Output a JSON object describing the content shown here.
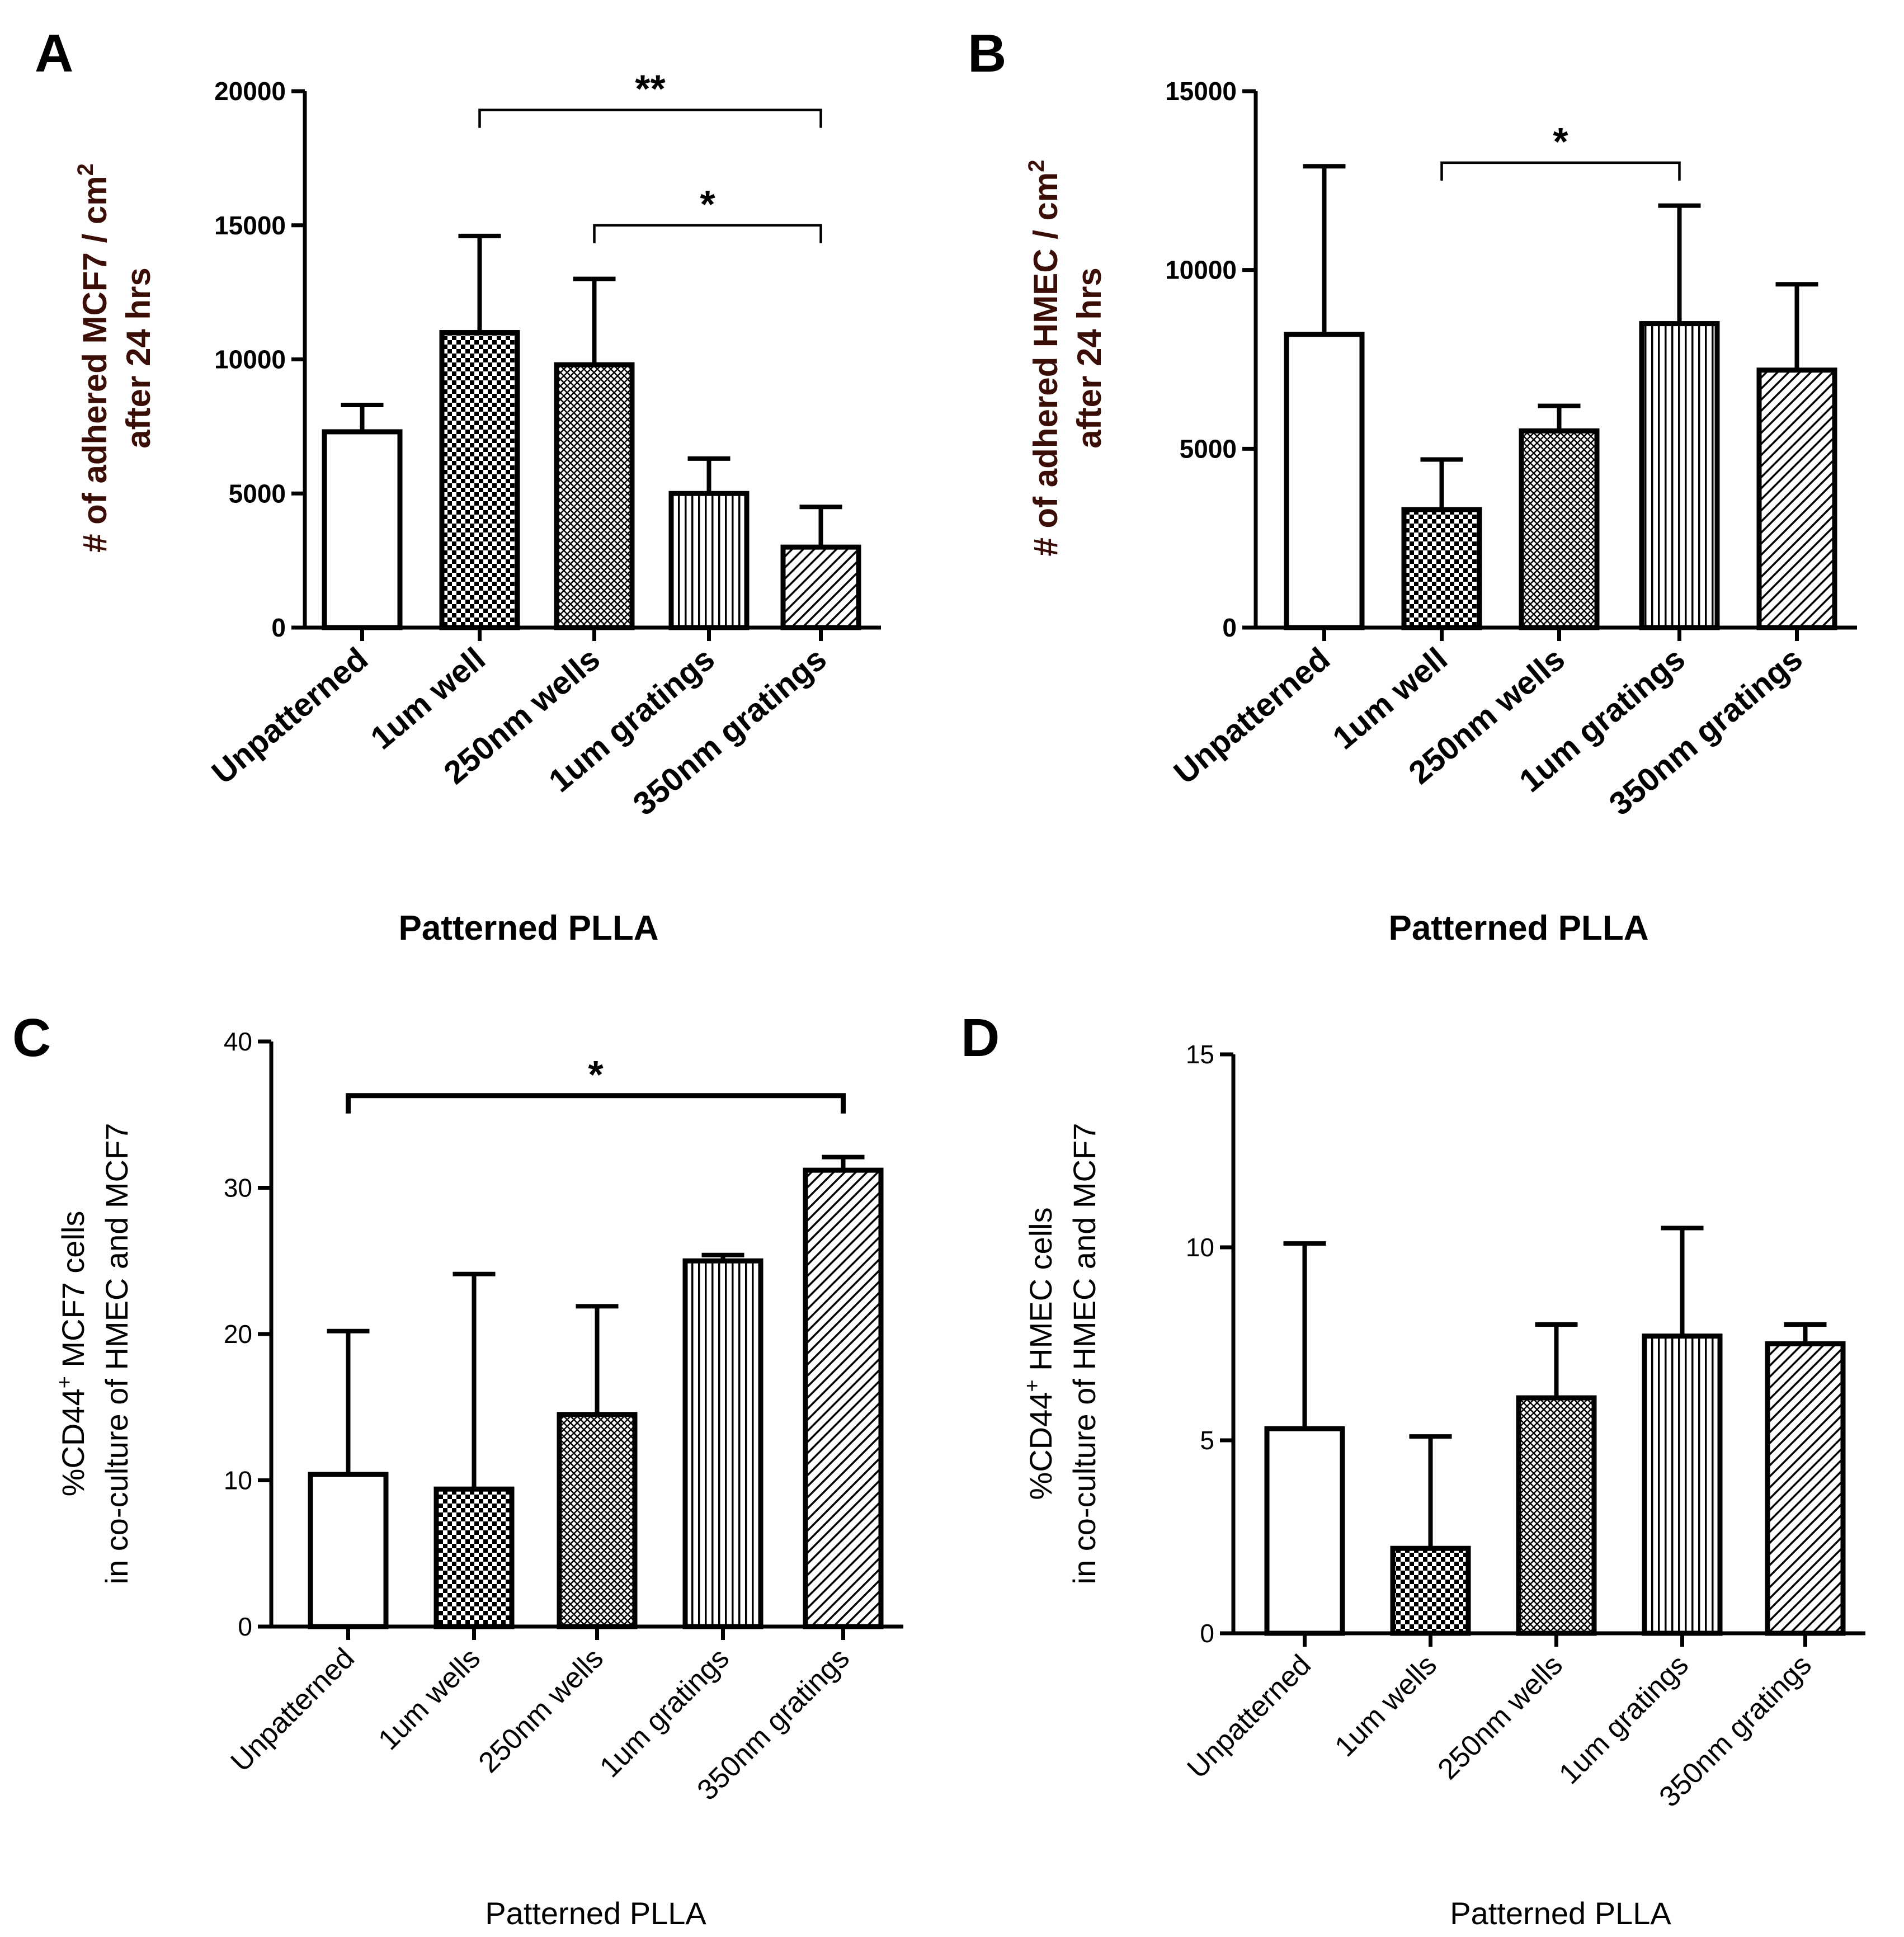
{
  "colors": {
    "ink": "#000000",
    "bar_fill": "#ffffff",
    "ylabel_bold": "#3a0e06"
  },
  "chart_data": [
    {
      "panel": "A",
      "type": "bar",
      "categories": [
        "Unpatterned",
        "1um well",
        "250nm wells",
        "1um gratings",
        "350nm gratings"
      ],
      "values": [
        7300,
        11000,
        9800,
        5000,
        3000
      ],
      "errors": [
        1000,
        3600,
        3200,
        1300,
        1500
      ],
      "patterns": [
        "none",
        "checker",
        "crosshatch",
        "vlines",
        "diag"
      ],
      "ylim": [
        0,
        20000
      ],
      "yticks": [
        "0",
        "5000",
        "10000",
        "15000",
        "20000"
      ],
      "ylabel_line1": "# of adhered MCF7 / cm",
      "ylabel_sup": "2",
      "ylabel_line2": "after 24 hrs",
      "xlabel": "Patterned PLLA",
      "significance": [
        {
          "from": 1,
          "to": 4,
          "y": 19300,
          "label": "**"
        },
        {
          "from": 2,
          "to": 4,
          "y": 15000,
          "label": "*"
        }
      ]
    },
    {
      "panel": "B",
      "type": "bar",
      "categories": [
        "Unpatterned",
        "1um well",
        "250nm wells",
        "1um gratings",
        "350nm gratings"
      ],
      "values": [
        8200,
        3300,
        5500,
        8500,
        7200
      ],
      "errors": [
        4700,
        1400,
        700,
        3300,
        2400
      ],
      "patterns": [
        "none",
        "checker",
        "crosshatch",
        "vlines",
        "diag"
      ],
      "ylim": [
        0,
        15000
      ],
      "yticks": [
        "0",
        "5000",
        "10000",
        "15000"
      ],
      "ylabel_line1": "# of adhered HMEC / cm",
      "ylabel_sup": "2",
      "ylabel_line2": "after 24 hrs",
      "xlabel": "Patterned PLLA",
      "significance": [
        {
          "from": 1,
          "to": 3,
          "y": 13000,
          "label": "*"
        }
      ]
    },
    {
      "panel": "C",
      "type": "bar",
      "categories": [
        "Unpatterned",
        "1um wells",
        "250nm wells",
        "1um gratings",
        "350nm gratings"
      ],
      "values": [
        10.4,
        9.4,
        14.5,
        25.0,
        31.2
      ],
      "errors": [
        9.8,
        14.7,
        7.4,
        0.4,
        0.9
      ],
      "patterns": [
        "none",
        "checker",
        "crosshatch",
        "vlines",
        "diag"
      ],
      "ylim": [
        0,
        40
      ],
      "yticks": [
        "0",
        "10",
        "20",
        "30",
        "40"
      ],
      "ylabel_pre": "%CD44",
      "ylabel_sup": "+",
      "ylabel_post": " MCF7 cells",
      "ylabel_line2": "in co-culture of HMEC and MCF7",
      "xlabel": "Patterned  PLLA",
      "significance": [
        {
          "from": 0,
          "to": 4,
          "y": 36.3,
          "label": "*"
        }
      ]
    },
    {
      "panel": "D",
      "type": "bar",
      "categories": [
        "Unpatterned",
        "1um wells",
        "250nm wells",
        "1um gratings",
        "350nm gratings"
      ],
      "values": [
        5.3,
        2.2,
        6.1,
        7.7,
        7.5
      ],
      "errors": [
        4.8,
        2.9,
        1.9,
        2.8,
        0.5
      ],
      "patterns": [
        "none",
        "checker",
        "crosshatch",
        "vlines",
        "diag"
      ],
      "ylim": [
        0,
        15
      ],
      "yticks": [
        "0",
        "5",
        "10",
        "15"
      ],
      "ylabel_pre": "%CD44",
      "ylabel_sup": "+",
      "ylabel_post": " HMEC cells",
      "ylabel_line2": "in co-culture of HMEC and MCF7",
      "xlabel": "Patterned  PLLA",
      "significance": []
    }
  ]
}
